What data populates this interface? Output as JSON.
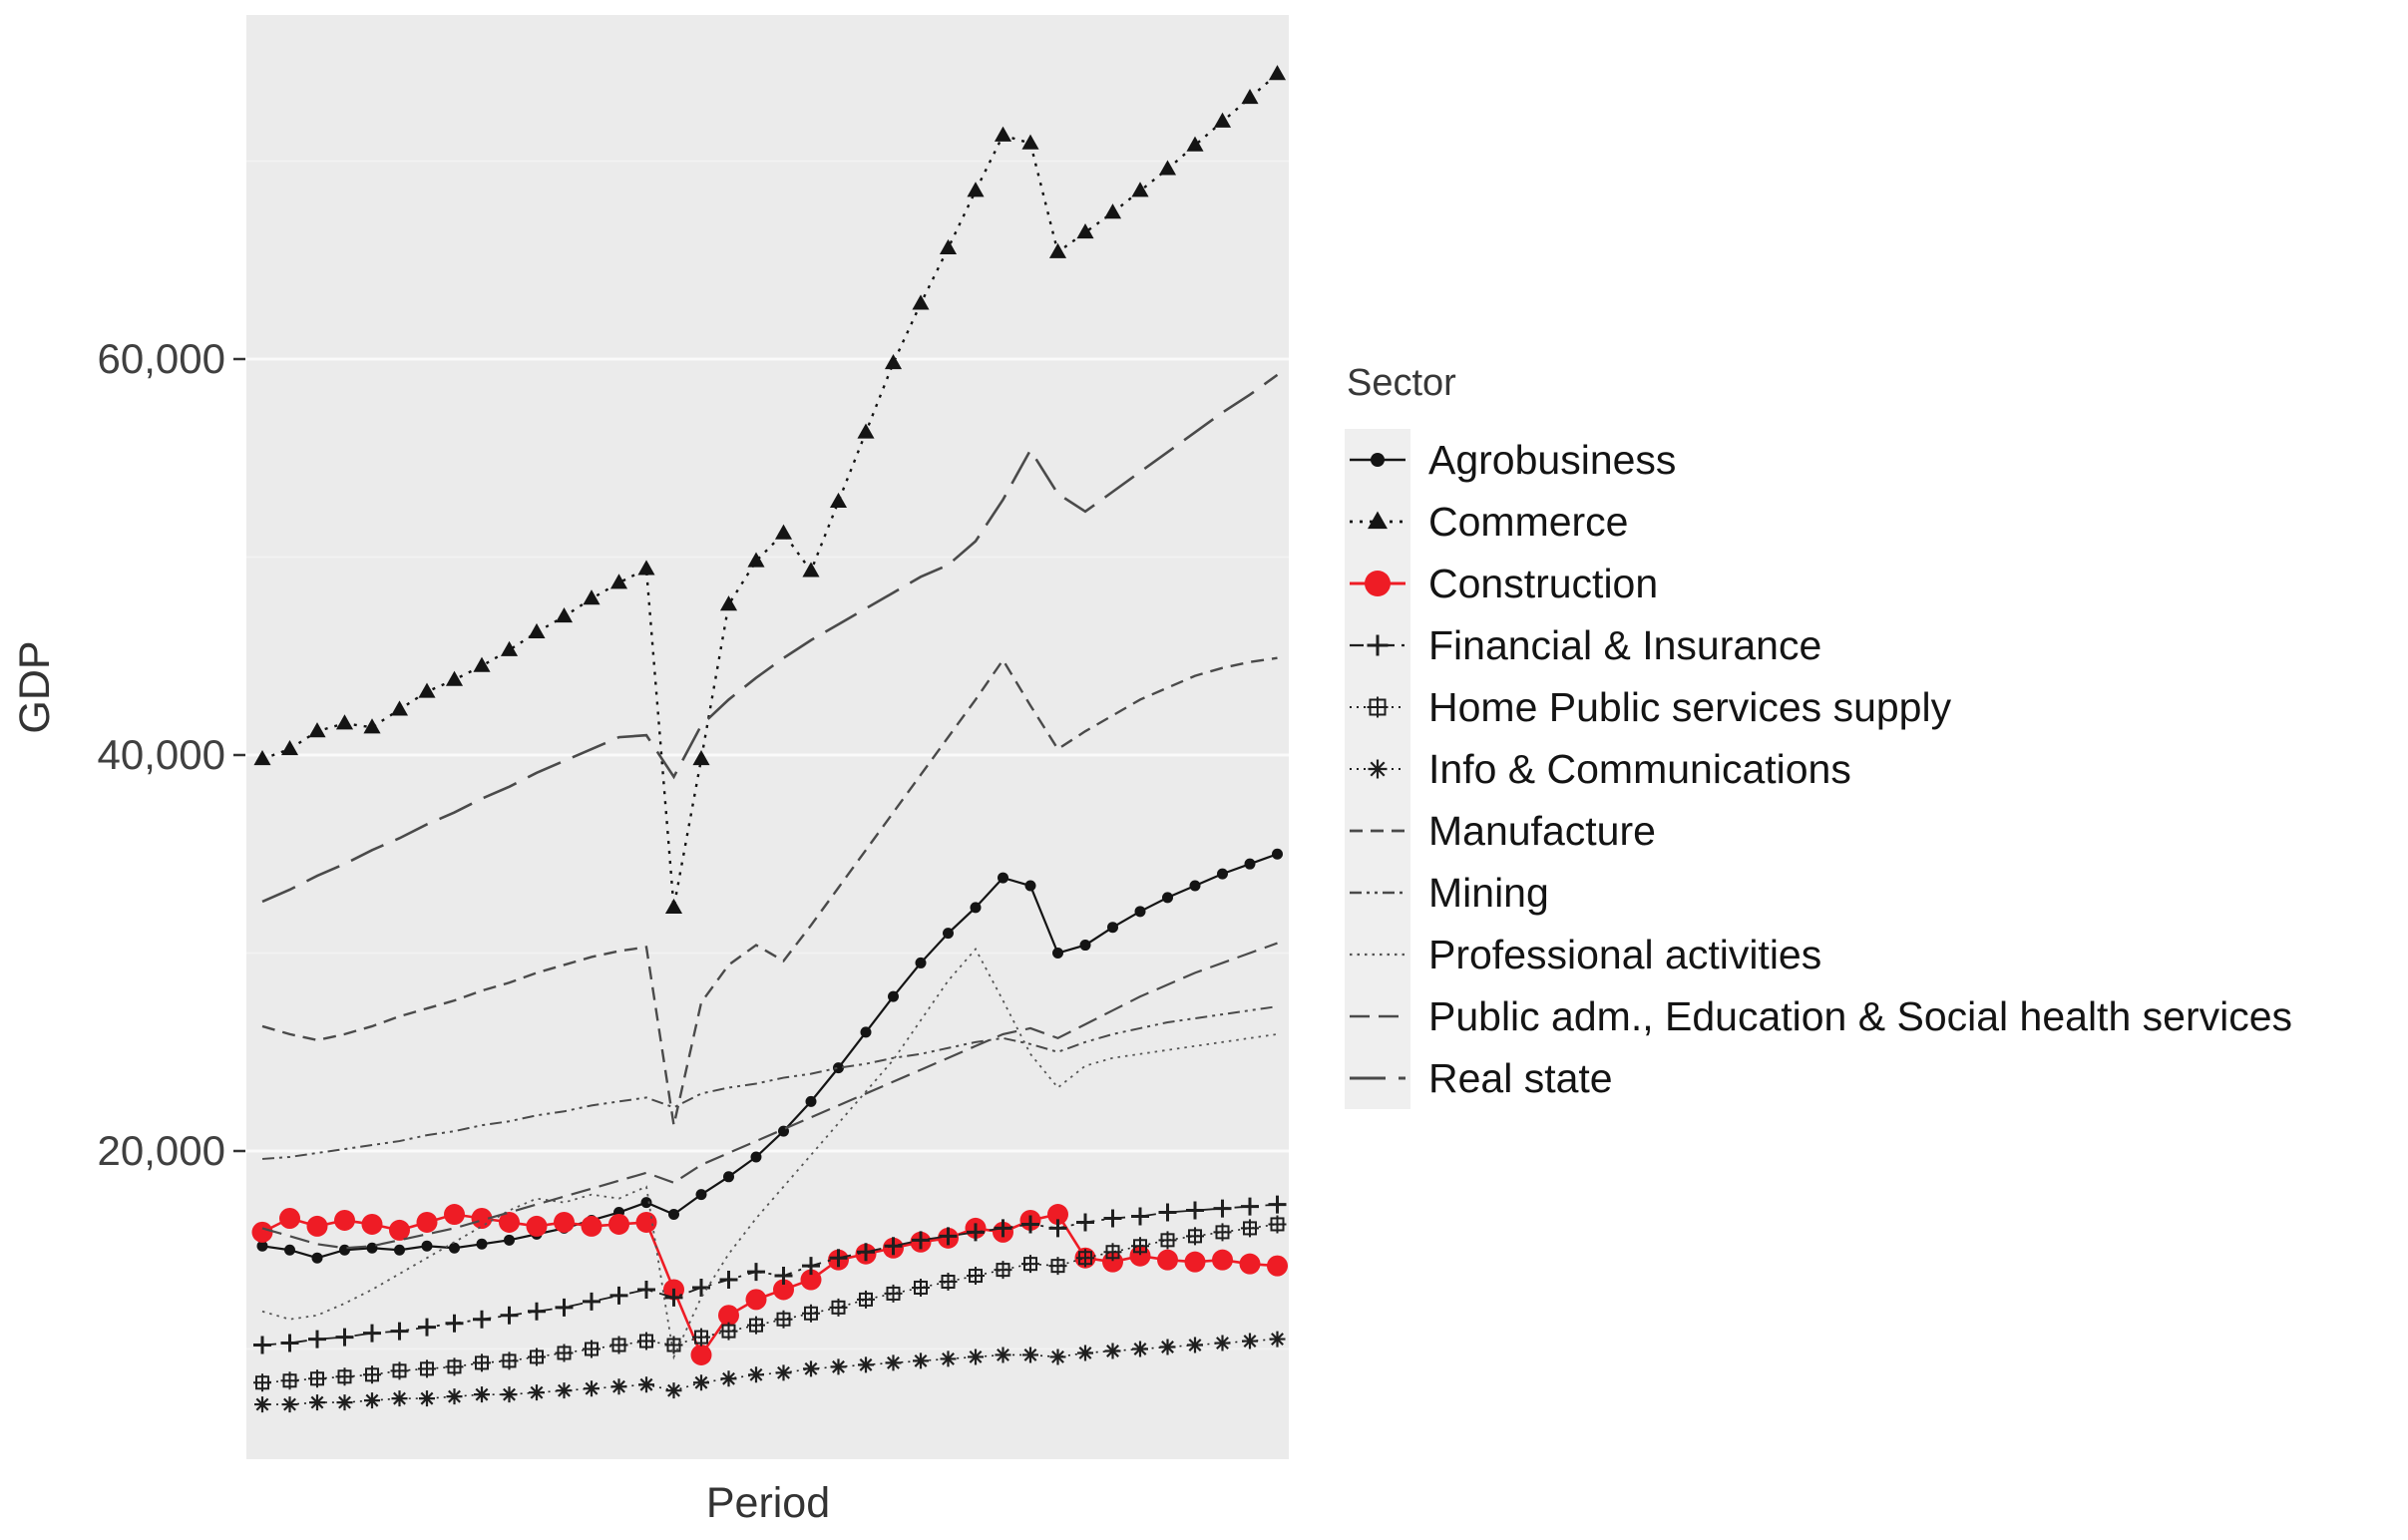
{
  "page": {
    "background": "#ffffff"
  },
  "axes": {
    "ylabel": "GDP",
    "xlabel": "Period"
  },
  "legend": {
    "title": "Sector"
  },
  "chart_data": {
    "type": "line",
    "title": "",
    "xlabel": "Period",
    "ylabel": "GDP",
    "x_tick_labels_visible": false,
    "n_points": 38,
    "x_description": "38 consecutive unlabeled periods (quarterly time axis)",
    "ylim": [
      4500,
      77500
    ],
    "grid": true,
    "legend_position": "right",
    "legend_title": "Sector",
    "panel_bg": "#ebebeb",
    "grid_major_color": "#fafafa",
    "grid_minor_color": "#f3f3f3",
    "y_major_gridlines": [
      20000,
      40000,
      60000
    ],
    "y_minor_gridlines": [
      10000,
      30000,
      50000,
      70000
    ],
    "y_ticks": [
      {
        "value": 60000,
        "label": "60,000"
      },
      {
        "value": 40000,
        "label": "40,000"
      },
      {
        "value": 20000,
        "label": "20,000"
      }
    ],
    "series": [
      {
        "name": "Agrobusiness",
        "color": "#141414",
        "line_style": "solid",
        "line_width": 2.2,
        "marker": "circle",
        "marker_size": 5.5,
        "values": [
          15200,
          15000,
          14600,
          15000,
          15100,
          15000,
          15200,
          15100,
          15300,
          15500,
          15800,
          16100,
          16500,
          16900,
          17400,
          16800,
          17800,
          18700,
          19700,
          21000,
          22500,
          24200,
          26000,
          27800,
          29500,
          31000,
          32300,
          33800,
          33400,
          30000,
          30400,
          31300,
          32100,
          32800,
          33400,
          34000,
          34500,
          35000
        ]
      },
      {
        "name": "Commerce",
        "color": "#141414",
        "line_style": "dotted",
        "line_width": 2.4,
        "marker": "triangle",
        "marker_size": 9,
        "values": [
          39800,
          40300,
          41200,
          41600,
          41400,
          42300,
          43200,
          43800,
          44500,
          45300,
          46200,
          47000,
          47900,
          48700,
          49400,
          32300,
          39800,
          47600,
          49800,
          51200,
          49300,
          52800,
          56300,
          59800,
          62800,
          65600,
          68500,
          71300,
          70900,
          65400,
          66400,
          67400,
          68500,
          69600,
          70800,
          72000,
          73200,
          74400
        ]
      },
      {
        "name": "Construction",
        "color": "#ee1c25",
        "line_style": "solid",
        "line_width": 2.6,
        "marker": "circle",
        "marker_size": 10.5,
        "values": [
          15900,
          16600,
          16200,
          16500,
          16300,
          16000,
          16400,
          16800,
          16600,
          16400,
          16200,
          16400,
          16200,
          16300,
          16400,
          13000,
          9700,
          11700,
          12500,
          13000,
          13500,
          14500,
          14800,
          15100,
          15400,
          15600,
          16100,
          15900,
          16500,
          16800,
          14600,
          14400,
          14700,
          14500,
          14400,
          14500,
          14300,
          14200
        ]
      },
      {
        "name": "Financial & Insurance",
        "color": "#1f1f1f",
        "line_style": "dashdot",
        "line_width": 1.8,
        "marker": "plus",
        "marker_size": 9,
        "values": [
          10200,
          10300,
          10500,
          10600,
          10800,
          10900,
          11100,
          11300,
          11500,
          11700,
          11900,
          12100,
          12400,
          12700,
          13000,
          12600,
          13100,
          13500,
          13900,
          13700,
          14200,
          14600,
          14900,
          15200,
          15500,
          15700,
          15900,
          16100,
          16300,
          16100,
          16400,
          16600,
          16700,
          16900,
          17000,
          17100,
          17200,
          17300
        ]
      },
      {
        "name": "Home Public services supply",
        "color": "#1f1f1f",
        "line_style": "dotted_fine",
        "line_width": 1.6,
        "marker": "square_plus",
        "marker_size": 7,
        "values": [
          8300,
          8400,
          8500,
          8600,
          8700,
          8900,
          9000,
          9100,
          9300,
          9400,
          9600,
          9800,
          10000,
          10200,
          10400,
          10200,
          10600,
          10900,
          11200,
          11500,
          11800,
          12100,
          12500,
          12800,
          13100,
          13400,
          13700,
          14000,
          14300,
          14200,
          14600,
          14900,
          15200,
          15500,
          15700,
          15900,
          16100,
          16300
        ]
      },
      {
        "name": "Info & Communications",
        "color": "#1f1f1f",
        "line_style": "dotted_fine",
        "line_width": 1.6,
        "marker": "asterisk",
        "marker_size": 8,
        "values": [
          7200,
          7200,
          7300,
          7300,
          7400,
          7500,
          7500,
          7600,
          7700,
          7700,
          7800,
          7900,
          8000,
          8100,
          8200,
          7900,
          8300,
          8500,
          8700,
          8800,
          9000,
          9100,
          9200,
          9300,
          9400,
          9500,
          9600,
          9700,
          9700,
          9600,
          9800,
          9900,
          10000,
          10100,
          10200,
          10300,
          10400,
          10500
        ]
      },
      {
        "name": "Manufacture",
        "color": "#4a4a4a",
        "line_style": "dashed",
        "line_width": 2.4,
        "marker": "none",
        "marker_size": 0,
        "values": [
          26300,
          25900,
          25600,
          25900,
          26300,
          26800,
          27200,
          27600,
          28100,
          28500,
          29000,
          29400,
          29800,
          30100,
          30300,
          21300,
          27500,
          29400,
          30400,
          29600,
          31400,
          33300,
          35200,
          37100,
          39000,
          40900,
          42800,
          44800,
          42500,
          40300,
          41200,
          42000,
          42800,
          43400,
          44000,
          44400,
          44700,
          44900
        ]
      },
      {
        "name": "Mining",
        "color": "#4a4a4a",
        "line_style": "dashdotdot",
        "line_width": 2.0,
        "marker": "none",
        "marker_size": 0,
        "values": [
          19600,
          19700,
          19900,
          20100,
          20300,
          20500,
          20800,
          21000,
          21300,
          21500,
          21800,
          22000,
          22300,
          22500,
          22700,
          22200,
          22900,
          23200,
          23400,
          23700,
          23900,
          24200,
          24400,
          24700,
          24900,
          25200,
          25500,
          25700,
          25400,
          25000,
          25500,
          25900,
          26200,
          26500,
          26700,
          26900,
          27100,
          27300
        ]
      },
      {
        "name": "Professional activities",
        "color": "#555555",
        "line_style": "dotted_mid",
        "line_width": 1.8,
        "marker": "none",
        "marker_size": 0,
        "values": [
          11900,
          11500,
          11700,
          12300,
          13000,
          13800,
          14600,
          15400,
          16200,
          17000,
          17600,
          17400,
          17800,
          17600,
          18200,
          9600,
          12600,
          14800,
          16600,
          18200,
          19800,
          21400,
          23000,
          24600,
          26600,
          28600,
          30200,
          27600,
          24900,
          23200,
          24300,
          24700,
          24900,
          25100,
          25300,
          25500,
          25700,
          25900
        ]
      },
      {
        "name": "Public adm., Education & Social health services",
        "color": "#4a4a4a",
        "line_style": "longdash",
        "line_width": 2.2,
        "marker": "none",
        "marker_size": 0,
        "values": [
          16100,
          15700,
          15300,
          15100,
          15200,
          15500,
          15800,
          16100,
          16500,
          16900,
          17300,
          17700,
          18100,
          18500,
          18900,
          18400,
          19300,
          19900,
          20500,
          21100,
          21700,
          22300,
          22900,
          23500,
          24100,
          24700,
          25300,
          25900,
          26200,
          25700,
          26400,
          27100,
          27800,
          28400,
          29000,
          29500,
          30000,
          30500
        ]
      },
      {
        "name": "Real state",
        "color": "#4a4a4a",
        "line_style": "xlongdash",
        "line_width": 2.6,
        "marker": "none",
        "marker_size": 0,
        "values": [
          32600,
          33200,
          33900,
          34500,
          35200,
          35800,
          36500,
          37100,
          37800,
          38400,
          39100,
          39700,
          40300,
          40900,
          41000,
          38900,
          41500,
          42800,
          43900,
          44900,
          45800,
          46600,
          47400,
          48200,
          49000,
          49600,
          50800,
          52900,
          55400,
          53200,
          52300,
          53300,
          54300,
          55300,
          56300,
          57300,
          58200,
          59200
        ]
      }
    ]
  }
}
